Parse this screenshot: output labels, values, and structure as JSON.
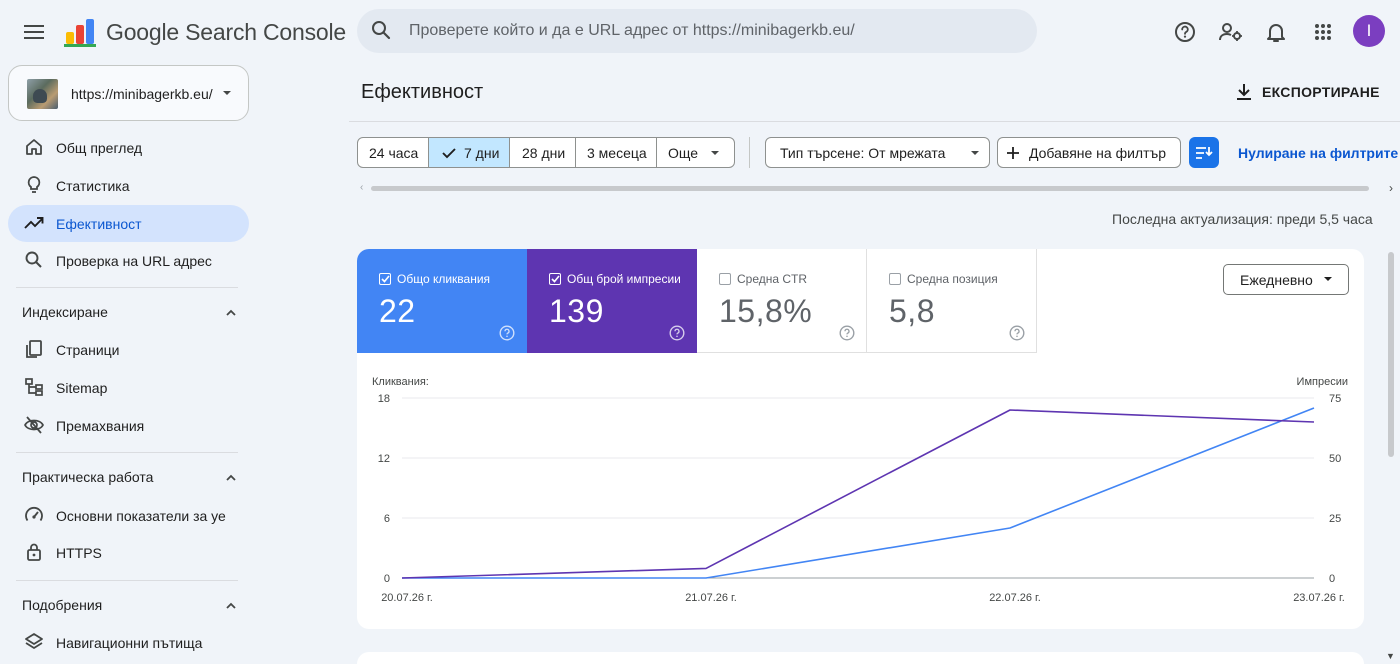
{
  "app": {
    "product_name": "Google Search Console",
    "search_placeholder": "Проверете който и да е URL адрес от https://minibagerkb.eu/",
    "avatar_initial": "I",
    "icons": [
      "menu-icon",
      "search-icon",
      "help-icon",
      "manage-users-icon",
      "bell-icon",
      "apps-grid-icon"
    ]
  },
  "sidebar": {
    "property_url": "https://minibagerkb.eu/",
    "top_items": [
      {
        "label": "Общ преглед",
        "icon": "home-icon"
      },
      {
        "label": "Статистика",
        "icon": "lightbulb-icon"
      },
      {
        "label": "Ефективност",
        "icon": "trending-up-icon",
        "active": true
      },
      {
        "label": "Проверка на URL адрес",
        "icon": "search-icon"
      }
    ],
    "sections": [
      {
        "title": "Индексиране",
        "items": [
          {
            "label": "Страници",
            "icon": "pages-icon"
          },
          {
            "label": "Sitemap",
            "icon": "sitemap-icon"
          },
          {
            "label": "Премахвания",
            "icon": "eye-off-icon"
          }
        ]
      },
      {
        "title": "Практическа работа",
        "items": [
          {
            "label": "Основни показатели за уеб",
            "icon": "speed-icon"
          },
          {
            "label": "HTTPS",
            "icon": "lock-icon"
          }
        ]
      },
      {
        "title": "Подобрения",
        "items": [
          {
            "label": "Навигационни пътища",
            "icon": "layers-icon"
          }
        ]
      }
    ]
  },
  "main": {
    "title": "Ефективност",
    "export_label": "ЕКСПОРТИРАНЕ",
    "date_ranges": [
      "24 часа",
      "7 дни",
      "28 дни",
      "3 месеца",
      "Още"
    ],
    "selected_range": "7 дни",
    "search_type_filter": "Тип търсене: От мрежата",
    "add_filter_label": "Добавяне на филтър",
    "reset_filters_label": "Нулиране на филтрите",
    "last_updated": "Последна актуализация: преди 5,5 часа",
    "metrics": [
      {
        "label": "Общо кликвания",
        "value": "22",
        "checked": true,
        "color": "#4285f4"
      },
      {
        "label": "Общ брой импресии",
        "value": "139",
        "checked": true,
        "color": "#5e35b1"
      },
      {
        "label": "Средна CTR",
        "value": "15,8%",
        "checked": false
      },
      {
        "label": "Средна позиция",
        "value": "5,8",
        "checked": false
      }
    ],
    "granularity": "Ежедневно"
  },
  "chart_data": {
    "type": "line",
    "x": [
      "20.07.26 г.",
      "21.07.26 г.",
      "22.07.26 г.",
      "23.07.26 г."
    ],
    "y_left_label": "Кликвания:",
    "y_right_label": "Импресии",
    "y_left_ticks": [
      0,
      6,
      12,
      18
    ],
    "y_right_ticks": [
      0,
      25,
      50,
      75
    ],
    "y_left_range": [
      0,
      18
    ],
    "y_right_range": [
      0,
      75
    ],
    "series": [
      {
        "name": "Кликвания",
        "axis": "left",
        "color": "#4285f4",
        "values": [
          0,
          0,
          5,
          17
        ]
      },
      {
        "name": "Импресии",
        "axis": "right",
        "color": "#5e35b1",
        "values": [
          0,
          4,
          70,
          65
        ]
      }
    ]
  }
}
